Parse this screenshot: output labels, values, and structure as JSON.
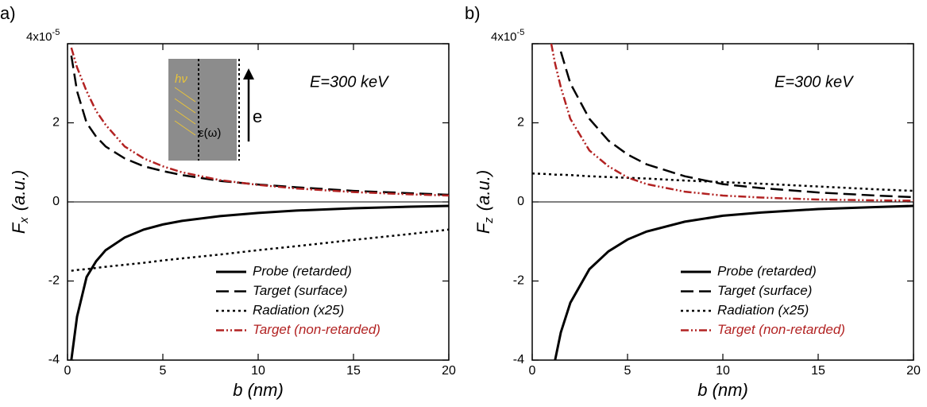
{
  "chart_data": [
    {
      "type": "line",
      "panel_label": "a)",
      "annotation": "E=300 keV",
      "xlabel": "b (nm)",
      "ylabel": "F",
      "ylabel_sub": "x",
      "ylabel_unit": "(a.u.)",
      "y_multiplier": "x10",
      "y_multiplier_exp": "-5",
      "xlim": [
        0,
        20
      ],
      "xticks": [
        0,
        5,
        10,
        15,
        20
      ],
      "ylim": [
        -4,
        4
      ],
      "yticks": [
        -4,
        -2,
        0,
        2,
        4
      ],
      "inset": {
        "labels": [
          "hν",
          "ε(ω)",
          "e"
        ]
      },
      "x": [
        0.2,
        0.5,
        1,
        1.5,
        2,
        3,
        4,
        5,
        6,
        8,
        10,
        12,
        15,
        18,
        20
      ],
      "series": [
        {
          "name": "Probe (retarded)",
          "color": "#000000",
          "dash": "solid",
          "values": [
            -4,
            -2.9,
            -1.9,
            -1.5,
            -1.22,
            -0.9,
            -0.7,
            -0.57,
            -0.48,
            -0.36,
            -0.28,
            -0.22,
            -0.16,
            -0.12,
            -0.1
          ]
        },
        {
          "name": "Target (surface)",
          "color": "#000000",
          "dash": "long",
          "values": [
            3.7,
            2.8,
            2.0,
            1.65,
            1.4,
            1.1,
            0.9,
            0.78,
            0.68,
            0.53,
            0.44,
            0.37,
            0.28,
            0.22,
            0.18
          ]
        },
        {
          "name": "Radiation (x25)",
          "color": "#000000",
          "dash": "dot",
          "values": [
            -1.74,
            -1.72,
            -1.7,
            -1.67,
            -1.64,
            -1.59,
            -1.54,
            -1.48,
            -1.43,
            -1.33,
            -1.22,
            -1.12,
            -0.96,
            -0.81,
            -0.7
          ]
        },
        {
          "name": "Target (non-retarded)",
          "color": "#b22222",
          "dash": "dashdotdot",
          "values": [
            3.9,
            3.4,
            2.8,
            2.3,
            1.95,
            1.4,
            1.1,
            0.9,
            0.75,
            0.55,
            0.43,
            0.34,
            0.25,
            0.19,
            0.16
          ]
        }
      ]
    },
    {
      "type": "line",
      "panel_label": "b)",
      "annotation": "E=300 keV",
      "xlabel": "b (nm)",
      "ylabel": "F",
      "ylabel_sub": "z",
      "ylabel_unit": "(a.u.)",
      "y_multiplier": "x10",
      "y_multiplier_exp": "-5",
      "xlim": [
        0,
        20
      ],
      "xticks": [
        0,
        5,
        10,
        15,
        20
      ],
      "ylim": [
        -4,
        4
      ],
      "yticks": [
        -4,
        -2,
        0,
        2,
        4
      ],
      "x": [
        0,
        0.5,
        1,
        1.2,
        1.5,
        2,
        3,
        4,
        5,
        6,
        8,
        10,
        12,
        15,
        18,
        20
      ],
      "series": [
        {
          "name": "Probe (retarded)",
          "color": "#000000",
          "dash": "solid",
          "values": [
            null,
            null,
            null,
            -4,
            -3.3,
            -2.55,
            -1.7,
            -1.25,
            -0.95,
            -0.75,
            -0.5,
            -0.35,
            -0.27,
            -0.18,
            -0.13,
            -0.1
          ]
        },
        {
          "name": "Target (surface)",
          "color": "#000000",
          "dash": "long",
          "values": [
            null,
            null,
            null,
            null,
            3.8,
            3.0,
            2.1,
            1.55,
            1.2,
            0.95,
            0.65,
            0.45,
            0.35,
            0.24,
            0.16,
            0.12
          ]
        },
        {
          "name": "Radiation (x25)",
          "color": "#000000",
          "dash": "dot",
          "values": [
            0.72,
            0.71,
            0.7,
            0.69,
            0.69,
            0.68,
            0.65,
            0.63,
            0.61,
            0.59,
            0.54,
            0.5,
            0.46,
            0.39,
            0.32,
            0.28
          ]
        },
        {
          "name": "Target (non-retarded)",
          "color": "#b22222",
          "dash": "dashdotdot",
          "values": [
            null,
            null,
            4.0,
            3.5,
            2.9,
            2.1,
            1.3,
            0.9,
            0.62,
            0.45,
            0.26,
            0.16,
            0.11,
            0.06,
            0.04,
            0.03
          ]
        }
      ]
    }
  ]
}
